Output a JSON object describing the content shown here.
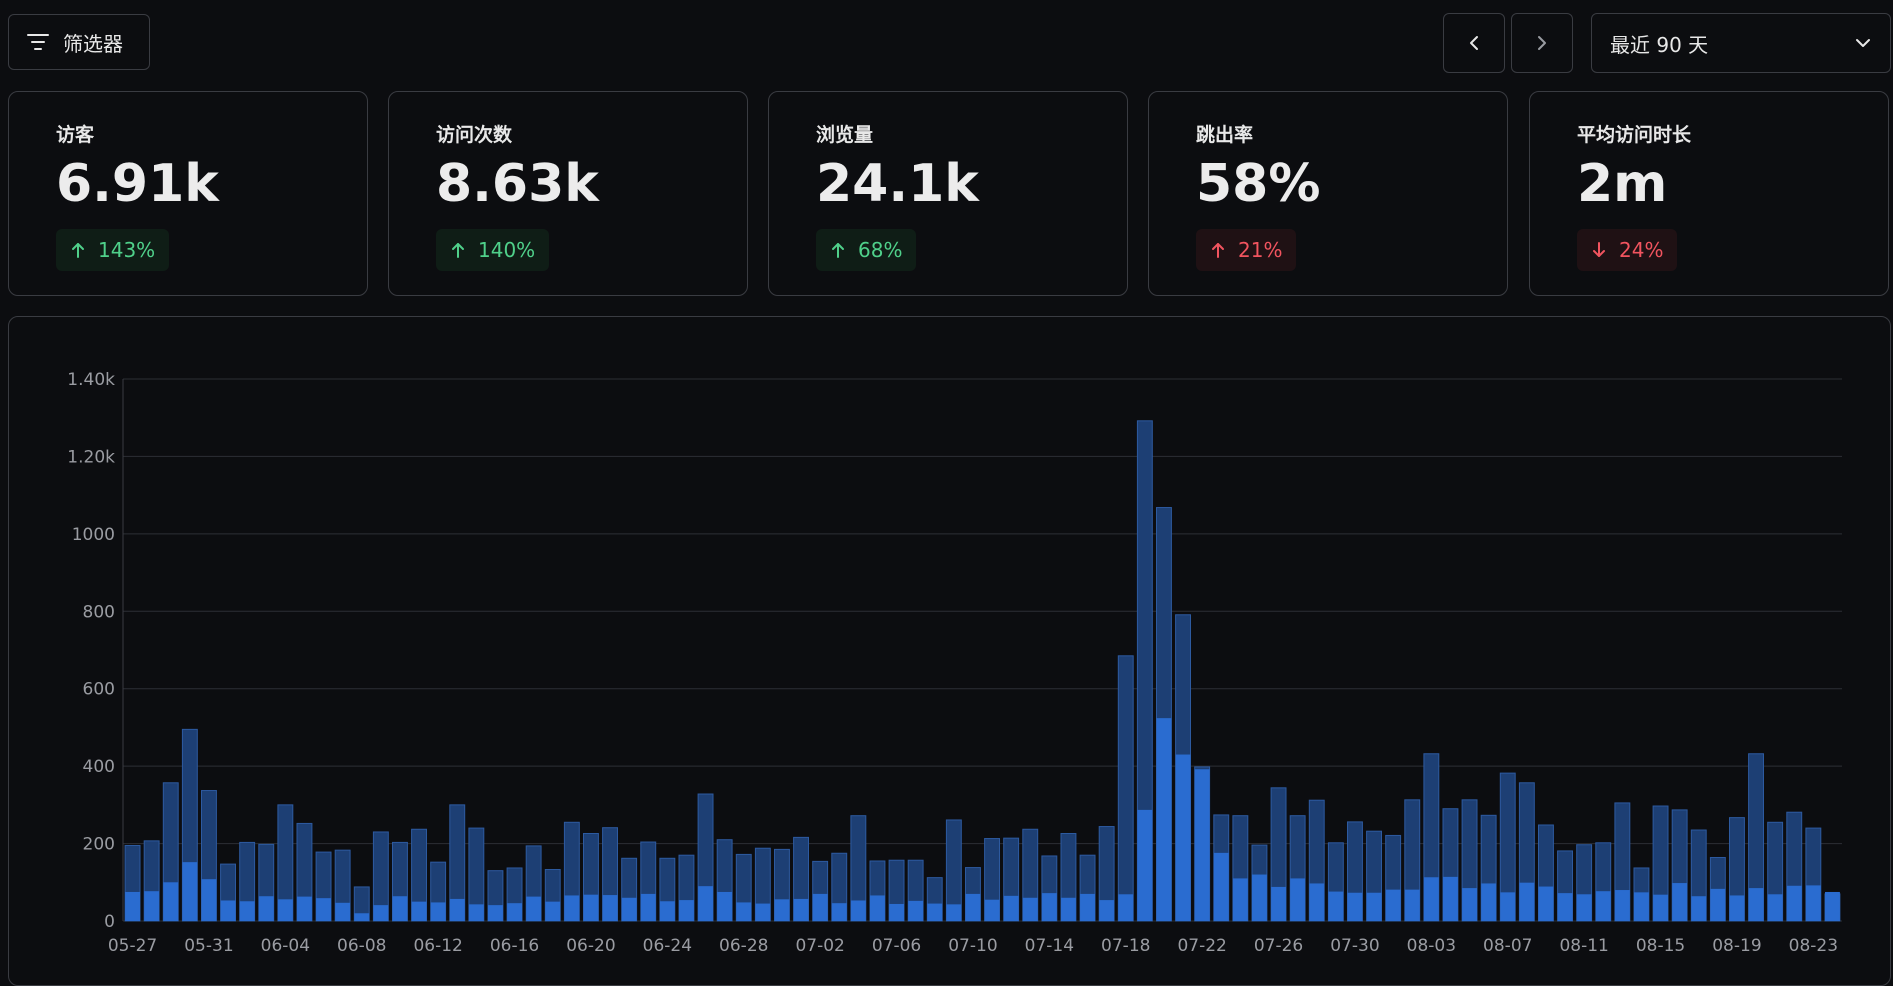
{
  "toolbar": {
    "filter_label": "筛选器",
    "filter_icon": "filter-icon",
    "prev_icon": "chevron-left-icon",
    "next_icon": "chevron-right-icon",
    "range_label": "最近 90 天",
    "range_icon": "chevron-down-icon"
  },
  "metrics": [
    {
      "label": "访客",
      "value": "6.91k",
      "delta": "143%",
      "direction": "up",
      "color": "#4fd08a"
    },
    {
      "label": "访问次数",
      "value": "8.63k",
      "delta": "140%",
      "direction": "up",
      "color": "#4fd08a"
    },
    {
      "label": "浏览量",
      "value": "24.1k",
      "delta": "68%",
      "direction": "up",
      "color": "#4fd08a"
    },
    {
      "label": "跳出率",
      "value": "58%",
      "delta": "21%",
      "direction": "up",
      "color": "#f1545f"
    },
    {
      "label": "平均访问时长",
      "value": "2m",
      "delta": "24%",
      "direction": "down",
      "color": "#f1545f"
    }
  ],
  "chart_data": {
    "type": "bar",
    "stacked_overlay": true,
    "ylim": [
      0,
      1400
    ],
    "y_ticks": [
      "0",
      "200",
      "400",
      "600",
      "800",
      "1000",
      "1.20k",
      "1.40k"
    ],
    "x_ticks": [
      "05-27",
      "05-31",
      "06-04",
      "06-08",
      "06-12",
      "06-16",
      "06-20",
      "06-24",
      "06-28",
      "07-02",
      "07-06",
      "07-10",
      "07-14",
      "07-18",
      "07-22",
      "07-26",
      "07-30",
      "08-03",
      "08-07",
      "08-11",
      "08-15",
      "08-19",
      "08-23"
    ],
    "grid": true,
    "colors": {
      "total": "#1d3f74",
      "total_border": "#2d5aa0",
      "part": "#2a6cd0"
    },
    "series": [
      {
        "values": [
          195,
          207,
          357,
          495,
          337,
          147,
          203,
          198,
          300,
          252,
          178,
          183,
          88,
          230,
          203,
          237,
          152,
          300,
          240,
          130,
          137,
          194,
          133,
          255,
          226,
          241,
          162,
          204,
          162,
          170,
          328,
          210,
          172,
          188,
          185,
          216,
          154,
          175,
          272,
          155,
          157,
          157,
          112,
          261,
          138,
          213,
          214,
          237,
          168,
          226,
          170,
          244,
          685,
          1292,
          1068,
          791,
          398,
          274,
          272,
          196,
          344,
          272,
          312,
          202,
          256,
          232,
          221,
          313,
          432,
          290,
          313,
          273,
          382,
          357,
          248,
          181,
          197,
          202,
          305,
          137,
          297,
          287,
          235,
          164,
          267,
          432,
          255,
          281,
          240,
          70
        ],
        "part_values": [
          75,
          77,
          100,
          152,
          108,
          53,
          51,
          64,
          56,
          63,
          59,
          47,
          20,
          41,
          64,
          50,
          48,
          57,
          43,
          41,
          46,
          63,
          50,
          66,
          68,
          67,
          60,
          70,
          51,
          54,
          90,
          75,
          48,
          45,
          56,
          57,
          70,
          46,
          53,
          66,
          44,
          52,
          45,
          43,
          70,
          55,
          65,
          60,
          72,
          60,
          70,
          54,
          69,
          287,
          524,
          430,
          392,
          176,
          110,
          120,
          88,
          110,
          97,
          76,
          73,
          73,
          81,
          81,
          113,
          114,
          85,
          97,
          74,
          99,
          89,
          72,
          69,
          77,
          80,
          74,
          68,
          98,
          64,
          83,
          66,
          85,
          69,
          91,
          92,
          75
        ]
      }
    ]
  }
}
